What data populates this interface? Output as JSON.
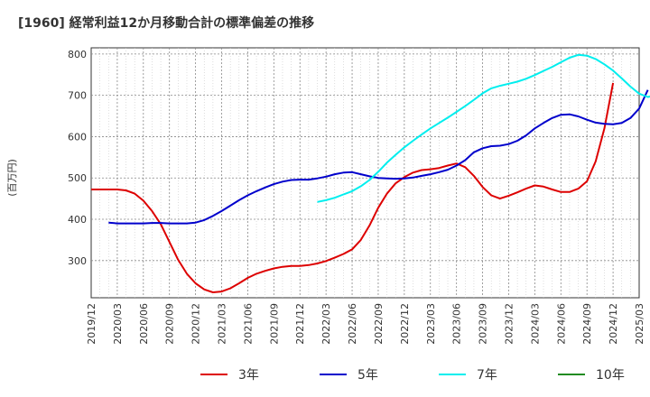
{
  "chart_data": {
    "type": "line",
    "title": "[1960]  経常利益12か月移動合計の標準偏差の推移",
    "ylabel": "(百万円)",
    "xlabel": "",
    "ylim": [
      210,
      815
    ],
    "yticks": [
      300,
      400,
      500,
      600,
      700,
      800
    ],
    "xticks": [
      "2019/12",
      "2020/03",
      "2020/06",
      "2020/09",
      "2020/12",
      "2021/03",
      "2021/06",
      "2021/09",
      "2021/12",
      "2022/03",
      "2022/06",
      "2022/09",
      "2022/12",
      "2023/03",
      "2023/06",
      "2023/09",
      "2023/12",
      "2024/03",
      "2024/06",
      "2024/09",
      "2024/12",
      "2025/03"
    ],
    "grid": true,
    "legend_position": "bottom",
    "series": [
      {
        "name": "3年",
        "color": "#dd0000",
        "start": "2019/12",
        "values": [
          472,
          472,
          472,
          472,
          470,
          462,
          445,
          420,
          388,
          345,
          302,
          268,
          245,
          230,
          223,
          225,
          233,
          245,
          258,
          268,
          275,
          281,
          285,
          287,
          287,
          289,
          293,
          299,
          307,
          316,
          327,
          350,
          385,
          428,
          462,
          487,
          502,
          513,
          519,
          521,
          524,
          530,
          535,
          526,
          505,
          478,
          458,
          450,
          457,
          465,
          474,
          482,
          479,
          472,
          466,
          466,
          474,
          492,
          540,
          620,
          730
        ]
      },
      {
        "name": "5年",
        "color": "#0000cc",
        "start": "2020/02",
        "values": [
          392,
          390,
          390,
          390,
          390,
          391,
          391,
          390,
          390,
          390,
          392,
          398,
          408,
          420,
          433,
          446,
          458,
          468,
          477,
          485,
          491,
          495,
          496,
          496,
          499,
          503,
          509,
          513,
          514,
          509,
          504,
          500,
          499,
          498,
          499,
          501,
          505,
          509,
          514,
          520,
          530,
          543,
          562,
          572,
          577,
          578,
          582,
          590,
          603,
          620,
          633,
          645,
          653,
          654,
          649,
          641,
          634,
          631,
          630,
          633,
          645,
          668,
          713
        ]
      },
      {
        "name": "7年",
        "color": "#00eeee",
        "start": "2022/02",
        "values": [
          442,
          446,
          452,
          460,
          468,
          480,
          495,
          515,
          537,
          556,
          574,
          590,
          605,
          620,
          633,
          646,
          660,
          674,
          689,
          705,
          717,
          723,
          728,
          733,
          740,
          749,
          759,
          769,
          780,
          791,
          798,
          796,
          788,
          775,
          760,
          741,
          721,
          704,
          696,
          701
        ]
      },
      {
        "name": "10年",
        "color": "#228b22",
        "start": "",
        "values": []
      }
    ]
  }
}
